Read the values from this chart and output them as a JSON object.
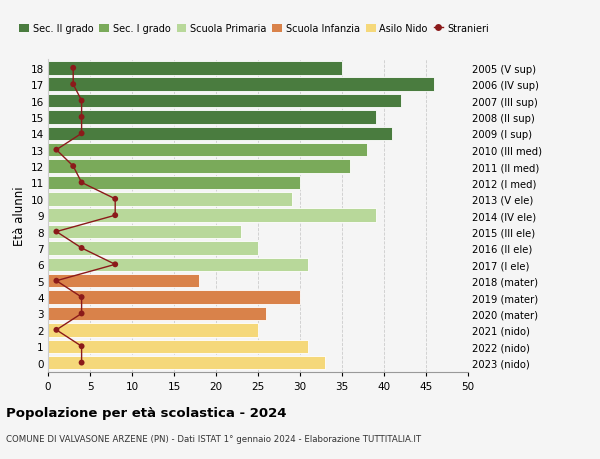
{
  "ages": [
    18,
    17,
    16,
    15,
    14,
    13,
    12,
    11,
    10,
    9,
    8,
    7,
    6,
    5,
    4,
    3,
    2,
    1,
    0
  ],
  "right_labels": [
    "2005 (V sup)",
    "2006 (IV sup)",
    "2007 (III sup)",
    "2008 (II sup)",
    "2009 (I sup)",
    "2010 (III med)",
    "2011 (II med)",
    "2012 (I med)",
    "2013 (V ele)",
    "2014 (IV ele)",
    "2015 (III ele)",
    "2016 (II ele)",
    "2017 (I ele)",
    "2018 (mater)",
    "2019 (mater)",
    "2020 (mater)",
    "2021 (nido)",
    "2022 (nido)",
    "2023 (nido)"
  ],
  "bar_values": [
    35,
    46,
    42,
    39,
    41,
    38,
    36,
    30,
    29,
    39,
    23,
    25,
    31,
    18,
    30,
    26,
    25,
    31,
    33
  ],
  "bar_colors": [
    "#4a7c3f",
    "#4a7c3f",
    "#4a7c3f",
    "#4a7c3f",
    "#4a7c3f",
    "#7aaa5a",
    "#7aaa5a",
    "#7aaa5a",
    "#b8d89a",
    "#b8d89a",
    "#b8d89a",
    "#b8d89a",
    "#b8d89a",
    "#d9824a",
    "#d9824a",
    "#d9824a",
    "#f5d87a",
    "#f5d87a",
    "#f5d87a"
  ],
  "stranieri_values": [
    3,
    3,
    4,
    4,
    4,
    1,
    3,
    4,
    8,
    8,
    1,
    4,
    8,
    1,
    4,
    4,
    1,
    4,
    4
  ],
  "stranieri_color": "#8b1a1a",
  "legend_labels": [
    "Sec. II grado",
    "Sec. I grado",
    "Scuola Primaria",
    "Scuola Infanzia",
    "Asilo Nido",
    "Stranieri"
  ],
  "legend_colors": [
    "#4a7c3f",
    "#7aaa5a",
    "#b8d89a",
    "#d9824a",
    "#f5d87a",
    "#8b1a1a"
  ],
  "ylabel_left": "Età alunni",
  "title": "Popolazione per età scolastica - 2024",
  "subtitle": "COMUNE DI VALVASONE ARZENE (PN) - Dati ISTAT 1° gennaio 2024 - Elaborazione TUTTITALIA.IT",
  "xlim": [
    0,
    50
  ],
  "xticks": [
    0,
    5,
    10,
    15,
    20,
    25,
    30,
    35,
    40,
    45,
    50
  ],
  "bg_color": "#f5f5f5",
  "bar_height": 0.82
}
